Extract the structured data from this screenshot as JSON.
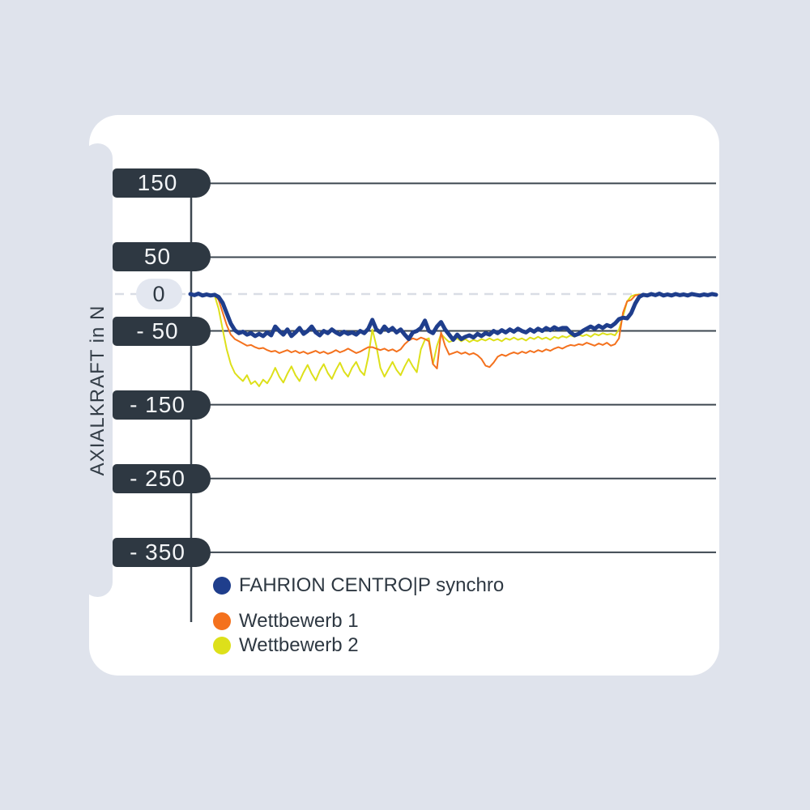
{
  "window": {
    "background": "#dfe3ec"
  },
  "card": {
    "background": "#ffffff"
  },
  "colors": {
    "bg": "#dfe3ec",
    "card": "#ffffff",
    "ink": "#2e3842",
    "grid": "#3d4750",
    "dash": "#d9dde5",
    "zero_pill_bg": "#e3e7f0",
    "pill_text": "#f3f5f7",
    "title_text": "#333d47",
    "blue": "#1f3e8c",
    "orange": "#f4711d",
    "yellow": "#dde01a"
  },
  "axis": {
    "title": "AXIALKRAFT in N"
  },
  "legend": [
    {
      "label": "FAHRION CENTRO|P synchro",
      "color": "#1f3e8c"
    },
    {
      "label": "Wettbewerb 1",
      "color": "#f4711d"
    },
    {
      "label": "Wettbewerb 2",
      "color": "#dde01a"
    }
  ],
  "chart_data": {
    "type": "line",
    "title": "",
    "xlabel": "",
    "ylabel": "AXIALKRAFT in N",
    "ylim": [
      -400,
      200
    ],
    "grid": "horizontal",
    "zero_line": "dashed",
    "legend_position": "bottom-left",
    "x_sampling": "uniform",
    "n_points": 131,
    "yticks": [
      {
        "label": "150",
        "value": 150,
        "style": "dark"
      },
      {
        "label": "50",
        "value": 50,
        "style": "dark"
      },
      {
        "label": "0",
        "value": 0,
        "style": "light"
      },
      {
        "label": "- 50",
        "value": -50,
        "style": "dark"
      },
      {
        "label": "- 150",
        "value": -150,
        "style": "dark"
      },
      {
        "label": "- 250",
        "value": -250,
        "style": "dark"
      },
      {
        "label": "- 350",
        "value": -350,
        "style": "dark"
      }
    ],
    "series": [
      {
        "name": "FAHRION CENTRO|P synchro",
        "color": "#1f3e8c",
        "stroke_width": 5,
        "values": [
          0,
          -1.5,
          0.5,
          -2,
          -0.5,
          -2,
          -1,
          -4,
          -12,
          -26,
          -40,
          -49,
          -53,
          -51,
          -55,
          -53,
          -57,
          -54,
          -57,
          -52,
          -56,
          -44,
          -50,
          -55,
          -48,
          -57,
          -52,
          -46,
          -54,
          -50,
          -44,
          -52,
          -56,
          -50,
          -53,
          -48,
          -52,
          -55,
          -51,
          -54,
          -52,
          -55,
          -50,
          -53,
          -47,
          -35,
          -48,
          -52,
          -44,
          -50,
          -46,
          -52,
          -48,
          -55,
          -61,
          -52,
          -50,
          -46,
          -36,
          -50,
          -53,
          -44,
          -38,
          -48,
          -55,
          -62,
          -55,
          -61,
          -58,
          -56,
          -59,
          -54,
          -57,
          -53,
          -55,
          -50,
          -53,
          -49,
          -52,
          -48,
          -51,
          -47,
          -50,
          -52,
          -48,
          -51,
          -47,
          -50,
          -46,
          -49,
          -45,
          -48,
          -46,
          -46,
          -52,
          -56,
          -54,
          -50,
          -47,
          -44,
          -47,
          -43,
          -46,
          -42,
          -44,
          -40,
          -34,
          -32,
          -33,
          -26,
          -13,
          -4,
          -1,
          -2,
          0,
          -1.5,
          0.5,
          -2,
          -0.5,
          -2,
          0,
          -1.5,
          -0.5,
          -2,
          0,
          -1,
          -2,
          -0.5,
          -1.5,
          0,
          -1
        ]
      },
      {
        "name": "Wettbewerb 1",
        "color": "#f4711d",
        "stroke_width": 2,
        "values": [
          -0.5,
          -1,
          -0.5,
          -1.5,
          -1,
          -1.5,
          -1,
          -8,
          -25,
          -42,
          -55,
          -61,
          -64,
          -67,
          -70,
          -69,
          -72,
          -74,
          -73,
          -76,
          -78,
          -77,
          -80,
          -78,
          -76,
          -79,
          -77,
          -80,
          -78,
          -81,
          -79,
          -77,
          -80,
          -78,
          -81,
          -79,
          -76,
          -79,
          -77,
          -74,
          -77,
          -80,
          -78,
          -75,
          -72,
          -72,
          -74,
          -76,
          -74,
          -77,
          -75,
          -78,
          -75,
          -68,
          -63,
          -60,
          -62,
          -59,
          -61,
          -64,
          -95,
          -101,
          -52,
          -70,
          -82,
          -80,
          -78,
          -81,
          -79,
          -82,
          -80,
          -83,
          -88,
          -97,
          -99,
          -93,
          -85,
          -82,
          -84,
          -81,
          -79,
          -81,
          -78,
          -80,
          -77,
          -79,
          -76,
          -78,
          -75,
          -77,
          -74,
          -72,
          -74,
          -71,
          -69,
          -70,
          -68,
          -69,
          -66,
          -68,
          -70,
          -67,
          -69,
          -66,
          -70,
          -68,
          -60,
          -25,
          -10,
          -8,
          -2,
          -1,
          -1,
          -0.5,
          -1,
          -0.5,
          -1,
          -0.5,
          -1,
          -0.5,
          -1,
          -0.5,
          -1,
          -0.5,
          -1,
          -0.5,
          -1,
          -0.5,
          -1,
          -0.5,
          -1
        ]
      },
      {
        "name": "Wettbewerb 2",
        "color": "#dde01a",
        "stroke_width": 2,
        "values": [
          -0.5,
          -1,
          -0.5,
          -1,
          -1.5,
          -1,
          -2,
          -20,
          -48,
          -75,
          -95,
          -107,
          -113,
          -118,
          -110,
          -122,
          -118,
          -125,
          -116,
          -121,
          -112,
          -100,
          -112,
          -120,
          -108,
          -98,
          -110,
          -118,
          -106,
          -96,
          -108,
          -117,
          -104,
          -95,
          -107,
          -115,
          -103,
          -93,
          -105,
          -112,
          -100,
          -92,
          -104,
          -110,
          -85,
          -48,
          -70,
          -100,
          -112,
          -102,
          -92,
          -103,
          -110,
          -98,
          -88,
          -98,
          -106,
          -75,
          -62,
          -60,
          -95,
          -70,
          -54,
          -60,
          -65,
          -63,
          -60,
          -64,
          -61,
          -65,
          -62,
          -64,
          -61,
          -63,
          -60,
          -63,
          -61,
          -64,
          -60,
          -62,
          -59,
          -62,
          -60,
          -63,
          -59,
          -61,
          -58,
          -61,
          -59,
          -62,
          -58,
          -60,
          -57,
          -59,
          -56,
          -58,
          -55,
          -57,
          -55,
          -58,
          -54,
          -56,
          -53,
          -55,
          -54,
          -56,
          -48,
          -30,
          -10,
          -3,
          -1,
          -0.5,
          -1,
          -0.5,
          -1,
          -0.5,
          -1,
          -0.5,
          -1,
          -0.5,
          -1,
          -0.5,
          -1,
          -0.5,
          -1,
          -0.5,
          -1,
          -0.5,
          -1,
          -0.5,
          -1
        ]
      }
    ]
  }
}
